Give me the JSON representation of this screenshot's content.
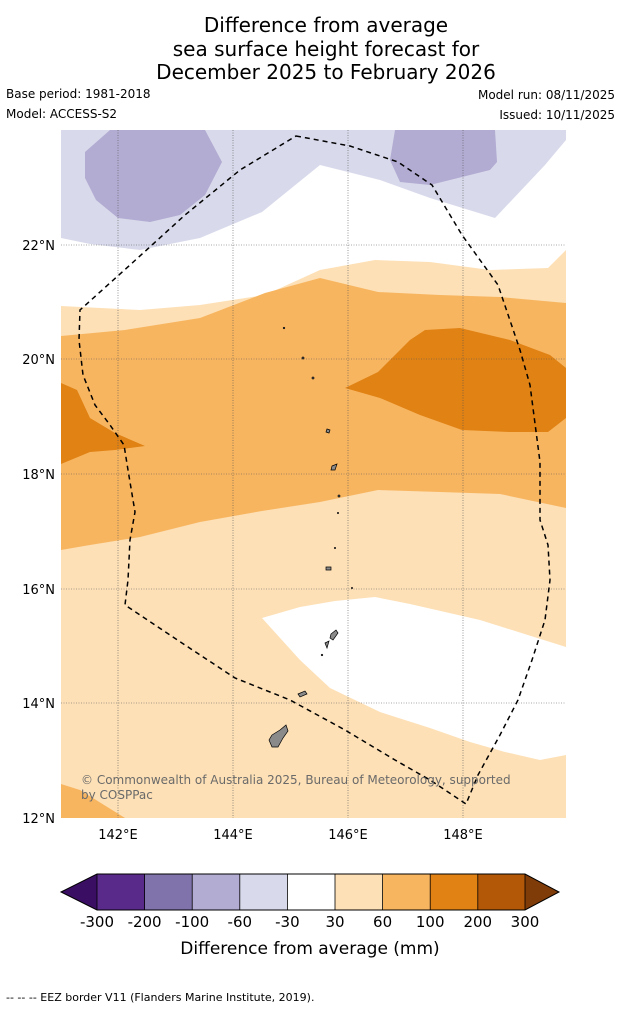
{
  "header": {
    "title_line1": "Difference from average",
    "title_line2": "sea surface height forecast for",
    "title_line3": "December 2025 to February 2026",
    "base_period": "Base period: 1981-2018",
    "model": "Model: ACCESS-S2",
    "model_run": "Model run: 08/11/2025",
    "issued": "Issued: 10/11/2025"
  },
  "map": {
    "lon_range": [
      141.0,
      149.8
    ],
    "lat_range": [
      12.0,
      24.0
    ],
    "lon_ticks": [
      "142°E",
      "144°E",
      "146°E",
      "148°E"
    ],
    "lat_ticks": [
      "22°N",
      "20°N",
      "18°N",
      "16°N",
      "14°N",
      "12°N"
    ],
    "copyright": "© Commonwealth of Australia 2025, Bureau of Meteorology, supported by COSPPac",
    "eez_style": "dashed black"
  },
  "colorbar": {
    "labels": [
      "-300",
      "-200",
      "-100",
      "-60",
      "-30",
      "30",
      "60",
      "100",
      "200",
      "300"
    ],
    "title": "Difference from average (mm)",
    "colors": [
      "#3a0f63",
      "#5a2a8a",
      "#8073ac",
      "#b2abd2",
      "#d8daeb",
      "#ffffff",
      "#fde0b6",
      "#f8b560",
      "#e08214",
      "#b35806",
      "#7f3b08"
    ]
  },
  "footer": {
    "legend": "--  --  -- EEZ border V11 (Flanders Marine Institute, 2019)."
  }
}
